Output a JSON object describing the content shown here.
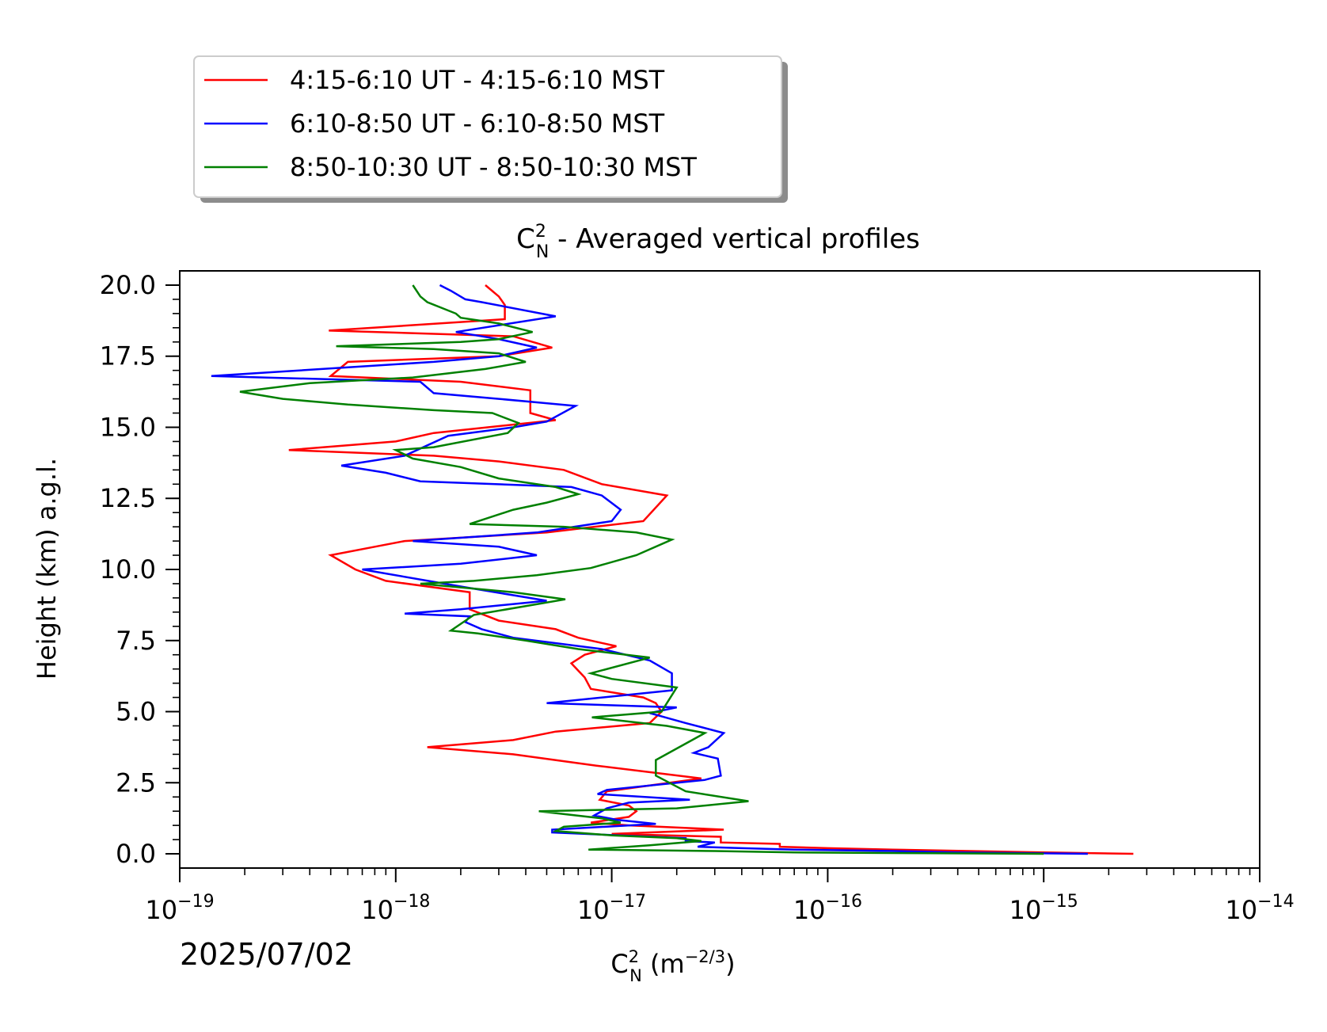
{
  "chart_data": {
    "type": "line",
    "title_main": "C",
    "title_sup": "2",
    "title_sub": "N",
    "title_rest": " - Averaged vertical profiles",
    "xlabel_main": "C",
    "xlabel_sup": "2",
    "xlabel_sub": "N",
    "xlabel_rest": " (m",
    "xlabel_exp": "−2/3",
    "xlabel_close": ")",
    "ylabel": "Height (km) a.g.l.",
    "date_label": "2025/07/02",
    "xscale": "log",
    "xlim": [
      1e-19,
      1e-14
    ],
    "ylim": [
      -0.5,
      20.5
    ],
    "xticks": [
      {
        "value": 1e-19,
        "base": "10",
        "exp": "−19"
      },
      {
        "value": 1e-18,
        "base": "10",
        "exp": "−18"
      },
      {
        "value": 1e-17,
        "base": "10",
        "exp": "−17"
      },
      {
        "value": 1e-16,
        "base": "10",
        "exp": "−16"
      },
      {
        "value": 1e-15,
        "base": "10",
        "exp": "−15"
      },
      {
        "value": 1e-14,
        "base": "10",
        "exp": "−14"
      }
    ],
    "yticks": [
      {
        "value": 0.0,
        "label": "0.0"
      },
      {
        "value": 2.5,
        "label": "2.5"
      },
      {
        "value": 5.0,
        "label": "5.0"
      },
      {
        "value": 7.5,
        "label": "7.5"
      },
      {
        "value": 10.0,
        "label": "10.0"
      },
      {
        "value": 12.5,
        "label": "12.5"
      },
      {
        "value": 15.0,
        "label": "15.0"
      },
      {
        "value": 17.5,
        "label": "17.5"
      },
      {
        "value": 20.0,
        "label": "20.0"
      }
    ],
    "yminor_step": 0.5,
    "grid": false,
    "legend_position": "above-left",
    "series": [
      {
        "name": "4:15-6:10 UT - 4:15-6:10 MST",
        "color": "#ff0000",
        "points": [
          [
            2.6e-15,
            0.0
          ],
          [
            1e-15,
            0.05
          ],
          [
            2e-16,
            0.15
          ],
          [
            1e-16,
            0.2
          ],
          [
            6e-17,
            0.25
          ],
          [
            6e-17,
            0.35
          ],
          [
            3.2e-17,
            0.4
          ],
          [
            3.2e-17,
            0.6
          ],
          [
            1e-17,
            0.7
          ],
          [
            3.3e-17,
            0.85
          ],
          [
            1.2e-17,
            1.0
          ],
          [
            8e-18,
            1.1
          ],
          [
            1.2e-17,
            1.3
          ],
          [
            1.3e-17,
            1.5
          ],
          [
            1.2e-17,
            1.7
          ],
          [
            8.8e-18,
            1.9
          ],
          [
            9.5e-18,
            2.2
          ],
          [
            2.6e-17,
            2.65
          ],
          [
            8.5e-18,
            3.1
          ],
          [
            3.5e-18,
            3.5
          ],
          [
            1.4e-18,
            3.75
          ],
          [
            3.5e-18,
            4.0
          ],
          [
            5.5e-18,
            4.3
          ],
          [
            1.5e-17,
            4.6
          ],
          [
            1.7e-17,
            5.0
          ],
          [
            1.6e-17,
            5.3
          ],
          [
            1.4e-17,
            5.5
          ],
          [
            8e-18,
            5.8
          ],
          [
            7.5e-18,
            6.2
          ],
          [
            6.5e-18,
            6.7
          ],
          [
            7.5e-18,
            7.0
          ],
          [
            1.05e-17,
            7.3
          ],
          [
            7e-18,
            7.6
          ],
          [
            5.5e-18,
            7.9
          ],
          [
            3e-18,
            8.2
          ],
          [
            2.2e-18,
            8.6
          ],
          [
            2.2e-18,
            9.2
          ],
          [
            9e-19,
            9.6
          ],
          [
            6.5e-19,
            10.0
          ],
          [
            5e-19,
            10.5
          ],
          [
            8e-19,
            10.8
          ],
          [
            1.1e-18,
            11.0
          ],
          [
            5e-18,
            11.3
          ],
          [
            1.4e-17,
            11.7
          ],
          [
            1.8e-17,
            12.6
          ],
          [
            9e-18,
            13.0
          ],
          [
            6e-18,
            13.5
          ],
          [
            3e-18,
            13.8
          ],
          [
            1.5e-18,
            14.0
          ],
          [
            3.2e-19,
            14.2
          ],
          [
            1e-18,
            14.5
          ],
          [
            1.5e-18,
            14.8
          ],
          [
            5.5e-18,
            15.25
          ],
          [
            4.2e-18,
            15.5
          ],
          [
            4.2e-18,
            16.3
          ],
          [
            2e-18,
            16.6
          ],
          [
            5e-19,
            16.8
          ],
          [
            6e-19,
            17.3
          ],
          [
            3e-18,
            17.5
          ],
          [
            5.3e-18,
            17.8
          ],
          [
            3.5e-18,
            18.2
          ],
          [
            4.9e-19,
            18.4
          ],
          [
            3.2e-18,
            18.8
          ],
          [
            3.2e-18,
            19.3
          ],
          [
            3e-18,
            19.6
          ],
          [
            2.6e-18,
            20.0
          ]
        ]
      },
      {
        "name": "6:10-8:50 UT - 6:10-8:50 MST",
        "color": "#0000ff",
        "points": [
          [
            1.6e-15,
            0.0
          ],
          [
            4e-16,
            0.05
          ],
          [
            2e-16,
            0.1
          ],
          [
            7e-17,
            0.15
          ],
          [
            4e-17,
            0.2
          ],
          [
            2.5e-17,
            0.25
          ],
          [
            3e-17,
            0.4
          ],
          [
            2.2e-17,
            0.45
          ],
          [
            2.2e-17,
            0.55
          ],
          [
            5.3e-18,
            0.75
          ],
          [
            5.3e-18,
            0.85
          ],
          [
            1.6e-17,
            1.05
          ],
          [
            1.05e-17,
            1.2
          ],
          [
            8.3e-18,
            1.35
          ],
          [
            9.5e-18,
            1.6
          ],
          [
            1.2e-17,
            1.8
          ],
          [
            2.3e-17,
            1.9
          ],
          [
            8.6e-18,
            2.1
          ],
          [
            9.5e-18,
            2.25
          ],
          [
            2.7e-17,
            2.6
          ],
          [
            3.2e-17,
            2.75
          ],
          [
            3.1e-17,
            3.35
          ],
          [
            2.4e-17,
            3.55
          ],
          [
            2.8e-17,
            3.75
          ],
          [
            3.3e-17,
            4.25
          ],
          [
            2.2e-17,
            4.6
          ],
          [
            1.5e-17,
            4.95
          ],
          [
            2e-17,
            5.15
          ],
          [
            5e-18,
            5.3
          ],
          [
            1.9e-17,
            5.75
          ],
          [
            1.9e-17,
            6.35
          ],
          [
            1.5e-17,
            6.8
          ],
          [
            9e-18,
            7.2
          ],
          [
            3.5e-18,
            7.6
          ],
          [
            2.5e-18,
            7.9
          ],
          [
            2.1e-18,
            8.15
          ],
          [
            2.2e-18,
            8.35
          ],
          [
            1.1e-18,
            8.45
          ],
          [
            2e-18,
            8.6
          ],
          [
            5e-18,
            8.9
          ],
          [
            2e-18,
            9.4
          ],
          [
            7e-19,
            10.0
          ],
          [
            2e-18,
            10.2
          ],
          [
            4.5e-18,
            10.5
          ],
          [
            3e-18,
            10.8
          ],
          [
            1.2e-18,
            11.0
          ],
          [
            4.5e-18,
            11.3
          ],
          [
            1e-17,
            11.7
          ],
          [
            1.1e-17,
            12.1
          ],
          [
            9e-18,
            12.6
          ],
          [
            6.5e-18,
            12.9
          ],
          [
            1.3e-18,
            13.1
          ],
          [
            9e-19,
            13.4
          ],
          [
            5.6e-19,
            13.65
          ],
          [
            1.1e-18,
            14.0
          ],
          [
            1.75e-18,
            14.7
          ],
          [
            3.5e-18,
            15.0
          ],
          [
            5e-18,
            15.2
          ],
          [
            6.8e-18,
            15.75
          ],
          [
            3e-18,
            16.0
          ],
          [
            1.5e-18,
            16.2
          ],
          [
            1.3e-18,
            16.6
          ],
          [
            1.4e-19,
            16.8
          ],
          [
            1.5e-18,
            17.3
          ],
          [
            3e-18,
            17.5
          ],
          [
            4.5e-18,
            17.8
          ],
          [
            3e-18,
            18.1
          ],
          [
            1.9e-18,
            18.35
          ],
          [
            5.5e-18,
            18.9
          ],
          [
            2.5e-18,
            19.4
          ],
          [
            2.1e-18,
            19.5
          ],
          [
            1.8e-18,
            19.8
          ],
          [
            1.6e-18,
            20.0
          ]
        ]
      },
      {
        "name": "8:50-10:30 UT - 8:50-10:30 MST",
        "color": "#008000",
        "points": [
          [
            1e-15,
            0.0
          ],
          [
            3e-16,
            0.02
          ],
          [
            7e-17,
            0.05
          ],
          [
            3e-17,
            0.1
          ],
          [
            7.8e-18,
            0.15
          ],
          [
            1.5e-17,
            0.3
          ],
          [
            2.6e-17,
            0.45
          ],
          [
            2e-17,
            0.55
          ],
          [
            1e-17,
            0.65
          ],
          [
            5.5e-18,
            0.8
          ],
          [
            6e-18,
            0.95
          ],
          [
            1.1e-17,
            1.1
          ],
          [
            9e-18,
            1.25
          ],
          [
            4.6e-18,
            1.5
          ],
          [
            2e-17,
            1.6
          ],
          [
            4.3e-17,
            1.85
          ],
          [
            2.2e-17,
            2.2
          ],
          [
            1.6e-17,
            2.75
          ],
          [
            1.6e-17,
            3.3
          ],
          [
            2.7e-17,
            4.25
          ],
          [
            1.8e-17,
            4.5
          ],
          [
            8.1e-18,
            4.8
          ],
          [
            1.7e-17,
            5.0
          ],
          [
            2e-17,
            5.85
          ],
          [
            1e-17,
            6.15
          ],
          [
            8e-18,
            6.35
          ],
          [
            1.5e-17,
            6.9
          ],
          [
            7e-18,
            7.2
          ],
          [
            4e-18,
            7.5
          ],
          [
            2.4e-18,
            7.75
          ],
          [
            1.8e-18,
            7.85
          ],
          [
            2.3e-18,
            8.4
          ],
          [
            6.1e-18,
            8.95
          ],
          [
            3.5e-18,
            9.2
          ],
          [
            1.3e-18,
            9.5
          ],
          [
            2.3e-18,
            9.6
          ],
          [
            4.5e-18,
            9.8
          ],
          [
            8e-18,
            10.05
          ],
          [
            1.3e-17,
            10.5
          ],
          [
            1.9e-17,
            11.05
          ],
          [
            1.3e-17,
            11.3
          ],
          [
            6e-18,
            11.5
          ],
          [
            2.2e-18,
            11.6
          ],
          [
            3.5e-18,
            12.1
          ],
          [
            5e-18,
            12.35
          ],
          [
            7e-18,
            12.65
          ],
          [
            5.5e-18,
            12.9
          ],
          [
            3e-18,
            13.2
          ],
          [
            2e-18,
            13.6
          ],
          [
            1.2e-18,
            13.9
          ],
          [
            1e-18,
            14.2
          ],
          [
            1.5e-18,
            14.3
          ],
          [
            3.3e-18,
            14.8
          ],
          [
            3.7e-18,
            15.15
          ],
          [
            2.8e-18,
            15.5
          ],
          [
            1.5e-18,
            15.6
          ],
          [
            6e-19,
            15.8
          ],
          [
            3e-19,
            16.0
          ],
          [
            1.9e-19,
            16.25
          ],
          [
            4e-19,
            16.55
          ],
          [
            1.2e-18,
            16.75
          ],
          [
            2.6e-18,
            17.05
          ],
          [
            4e-18,
            17.3
          ],
          [
            3e-18,
            17.6
          ],
          [
            1.5e-18,
            17.75
          ],
          [
            5.3e-19,
            17.85
          ],
          [
            2e-18,
            18.0
          ],
          [
            3e-18,
            18.1
          ],
          [
            4.3e-18,
            18.35
          ],
          [
            3e-18,
            18.65
          ],
          [
            2e-18,
            18.85
          ],
          [
            1.9e-18,
            19.0
          ],
          [
            1.4e-18,
            19.4
          ],
          [
            1.3e-18,
            19.6
          ],
          [
            1.2e-18,
            20.0
          ]
        ]
      }
    ]
  }
}
